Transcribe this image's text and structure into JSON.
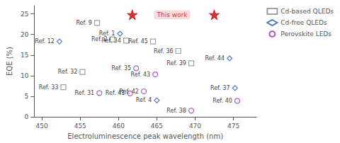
{
  "chart_data": {
    "type": "scatter",
    "xlabel": "Electroluminescence peak wavelength (nm)",
    "ylabel": "EQE (%)",
    "xlim": [
      449,
      478
    ],
    "ylim": [
      0,
      27
    ],
    "xticks": [
      450,
      455,
      460,
      465,
      470,
      475
    ],
    "yticks": [
      0,
      5,
      10,
      15,
      20,
      25
    ],
    "grid": false,
    "legend": "right",
    "series": [
      {
        "name": "Cd-based QLEDs",
        "color": "#888888",
        "marker": "square",
        "x": [
          457.2,
          459.2,
          461.0,
          464.5,
          455.3,
          452.8,
          467.8,
          469.5
        ],
        "values": [
          22.8,
          18.8,
          18.5,
          18.3,
          10.9,
          7.2,
          16.0,
          13.0
        ],
        "labels": [
          "Ref. 9",
          "Ref. 2",
          "Ref. 34",
          "Ref. 45",
          "Ref. 32",
          "Ref. 33",
          "Ref. 36",
          "Ref. 39"
        ]
      },
      {
        "name": "Cd-free QLEDs",
        "color": "#2255bb",
        "marker": "diamond",
        "x": [
          452.3,
          460.2,
          474.5,
          475.2,
          465.0
        ],
        "values": [
          18.3,
          20.2,
          14.2,
          7.0,
          4.0
        ],
        "labels": [
          "Ref. 12",
          "Ref. 1",
          "Ref. 44",
          "Ref. 37",
          "Ref. 4"
        ]
      },
      {
        "name": "Perovskite LEDs",
        "color": "#9933aa",
        "marker": "circle",
        "x": [
          457.5,
          461.5,
          463.3,
          464.8,
          469.5,
          475.5,
          462.3
        ],
        "values": [
          5.8,
          5.7,
          6.2,
          10.3,
          1.5,
          3.9,
          11.8
        ],
        "labels": [
          "Ref. 31",
          "Ref. 41",
          "Ref. 42",
          "Ref. 43",
          "Ref. 38",
          "Ref. 40",
          "Ref. 35"
        ]
      },
      {
        "color": "#cc0000",
        "marker": "star",
        "x": [
          461.8,
          472.5
        ],
        "values": [
          24.8,
          24.8
        ]
      }
    ],
    "annotations": [
      {
        "text": "This work",
        "x": 467.0,
        "y": 24.8,
        "color": "#cc0000"
      }
    ]
  }
}
